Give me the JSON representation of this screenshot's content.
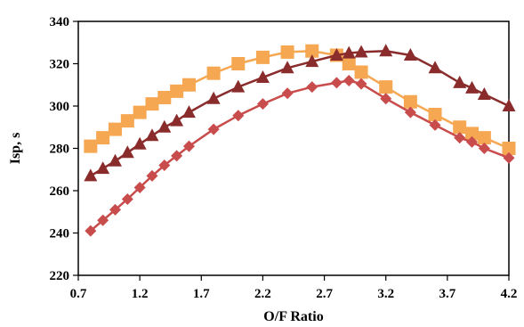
{
  "chart_data": {
    "type": "line",
    "title": "",
    "xlabel": "O/F Ratio",
    "ylabel": "Isp, s",
    "xlim": [
      0.7,
      4.2
    ],
    "ylim": [
      220,
      340
    ],
    "xticks": [
      0.7,
      1.2,
      1.7,
      2.2,
      2.7,
      3.2,
      3.7,
      4.2
    ],
    "yticks": [
      220,
      240,
      260,
      280,
      300,
      320,
      340
    ],
    "xtick_labels": [
      "0.7",
      "1.2",
      "1.7",
      "2.2",
      "2.7",
      "3.2",
      "3.7",
      "4.2"
    ],
    "ytick_labels": [
      "220",
      "240",
      "260",
      "280",
      "300",
      "320",
      "340"
    ],
    "grid": false,
    "legend": "none",
    "series": [
      {
        "color": "#f6a752",
        "marker": "square",
        "x": [
          0.8,
          0.9,
          1.0,
          1.1,
          1.2,
          1.3,
          1.4,
          1.5,
          1.6,
          1.8,
          2.0,
          2.2,
          2.4,
          2.6,
          2.8,
          2.9,
          3.0,
          3.2,
          3.4,
          3.6,
          3.8,
          3.9,
          4.0,
          4.2
        ],
        "y": [
          281,
          285,
          289,
          293,
          297,
          301,
          304,
          307,
          310,
          315.5,
          320,
          323,
          325.5,
          326,
          324,
          320,
          316,
          309,
          302,
          296,
          290,
          287,
          285,
          280
        ]
      },
      {
        "color": "#8b2c2c",
        "marker": "triangle",
        "x": [
          0.8,
          0.9,
          1.0,
          1.1,
          1.2,
          1.3,
          1.4,
          1.5,
          1.6,
          1.8,
          2.0,
          2.2,
          2.4,
          2.6,
          2.8,
          2.9,
          3.0,
          3.2,
          3.4,
          3.6,
          3.8,
          3.9,
          4.0,
          4.2
        ],
        "y": [
          267,
          270.5,
          274,
          278,
          282,
          286,
          290,
          293,
          297,
          303.5,
          309,
          313.5,
          318,
          321,
          324,
          325,
          325.5,
          326,
          324,
          318,
          311,
          308.5,
          305.5,
          300
        ]
      },
      {
        "color": "#c94c4c",
        "marker": "diamond",
        "x": [
          0.8,
          0.9,
          1.0,
          1.1,
          1.2,
          1.3,
          1.4,
          1.5,
          1.6,
          1.8,
          2.0,
          2.2,
          2.4,
          2.6,
          2.8,
          2.9,
          3.0,
          3.2,
          3.4,
          3.6,
          3.8,
          3.9,
          4.0,
          4.2
        ],
        "y": [
          241,
          246,
          251,
          256,
          261.5,
          267,
          272,
          276.5,
          281,
          289,
          295.5,
          301,
          306,
          309,
          311,
          312,
          310.5,
          303.5,
          297,
          291,
          285,
          283,
          280,
          275.5
        ]
      }
    ]
  }
}
